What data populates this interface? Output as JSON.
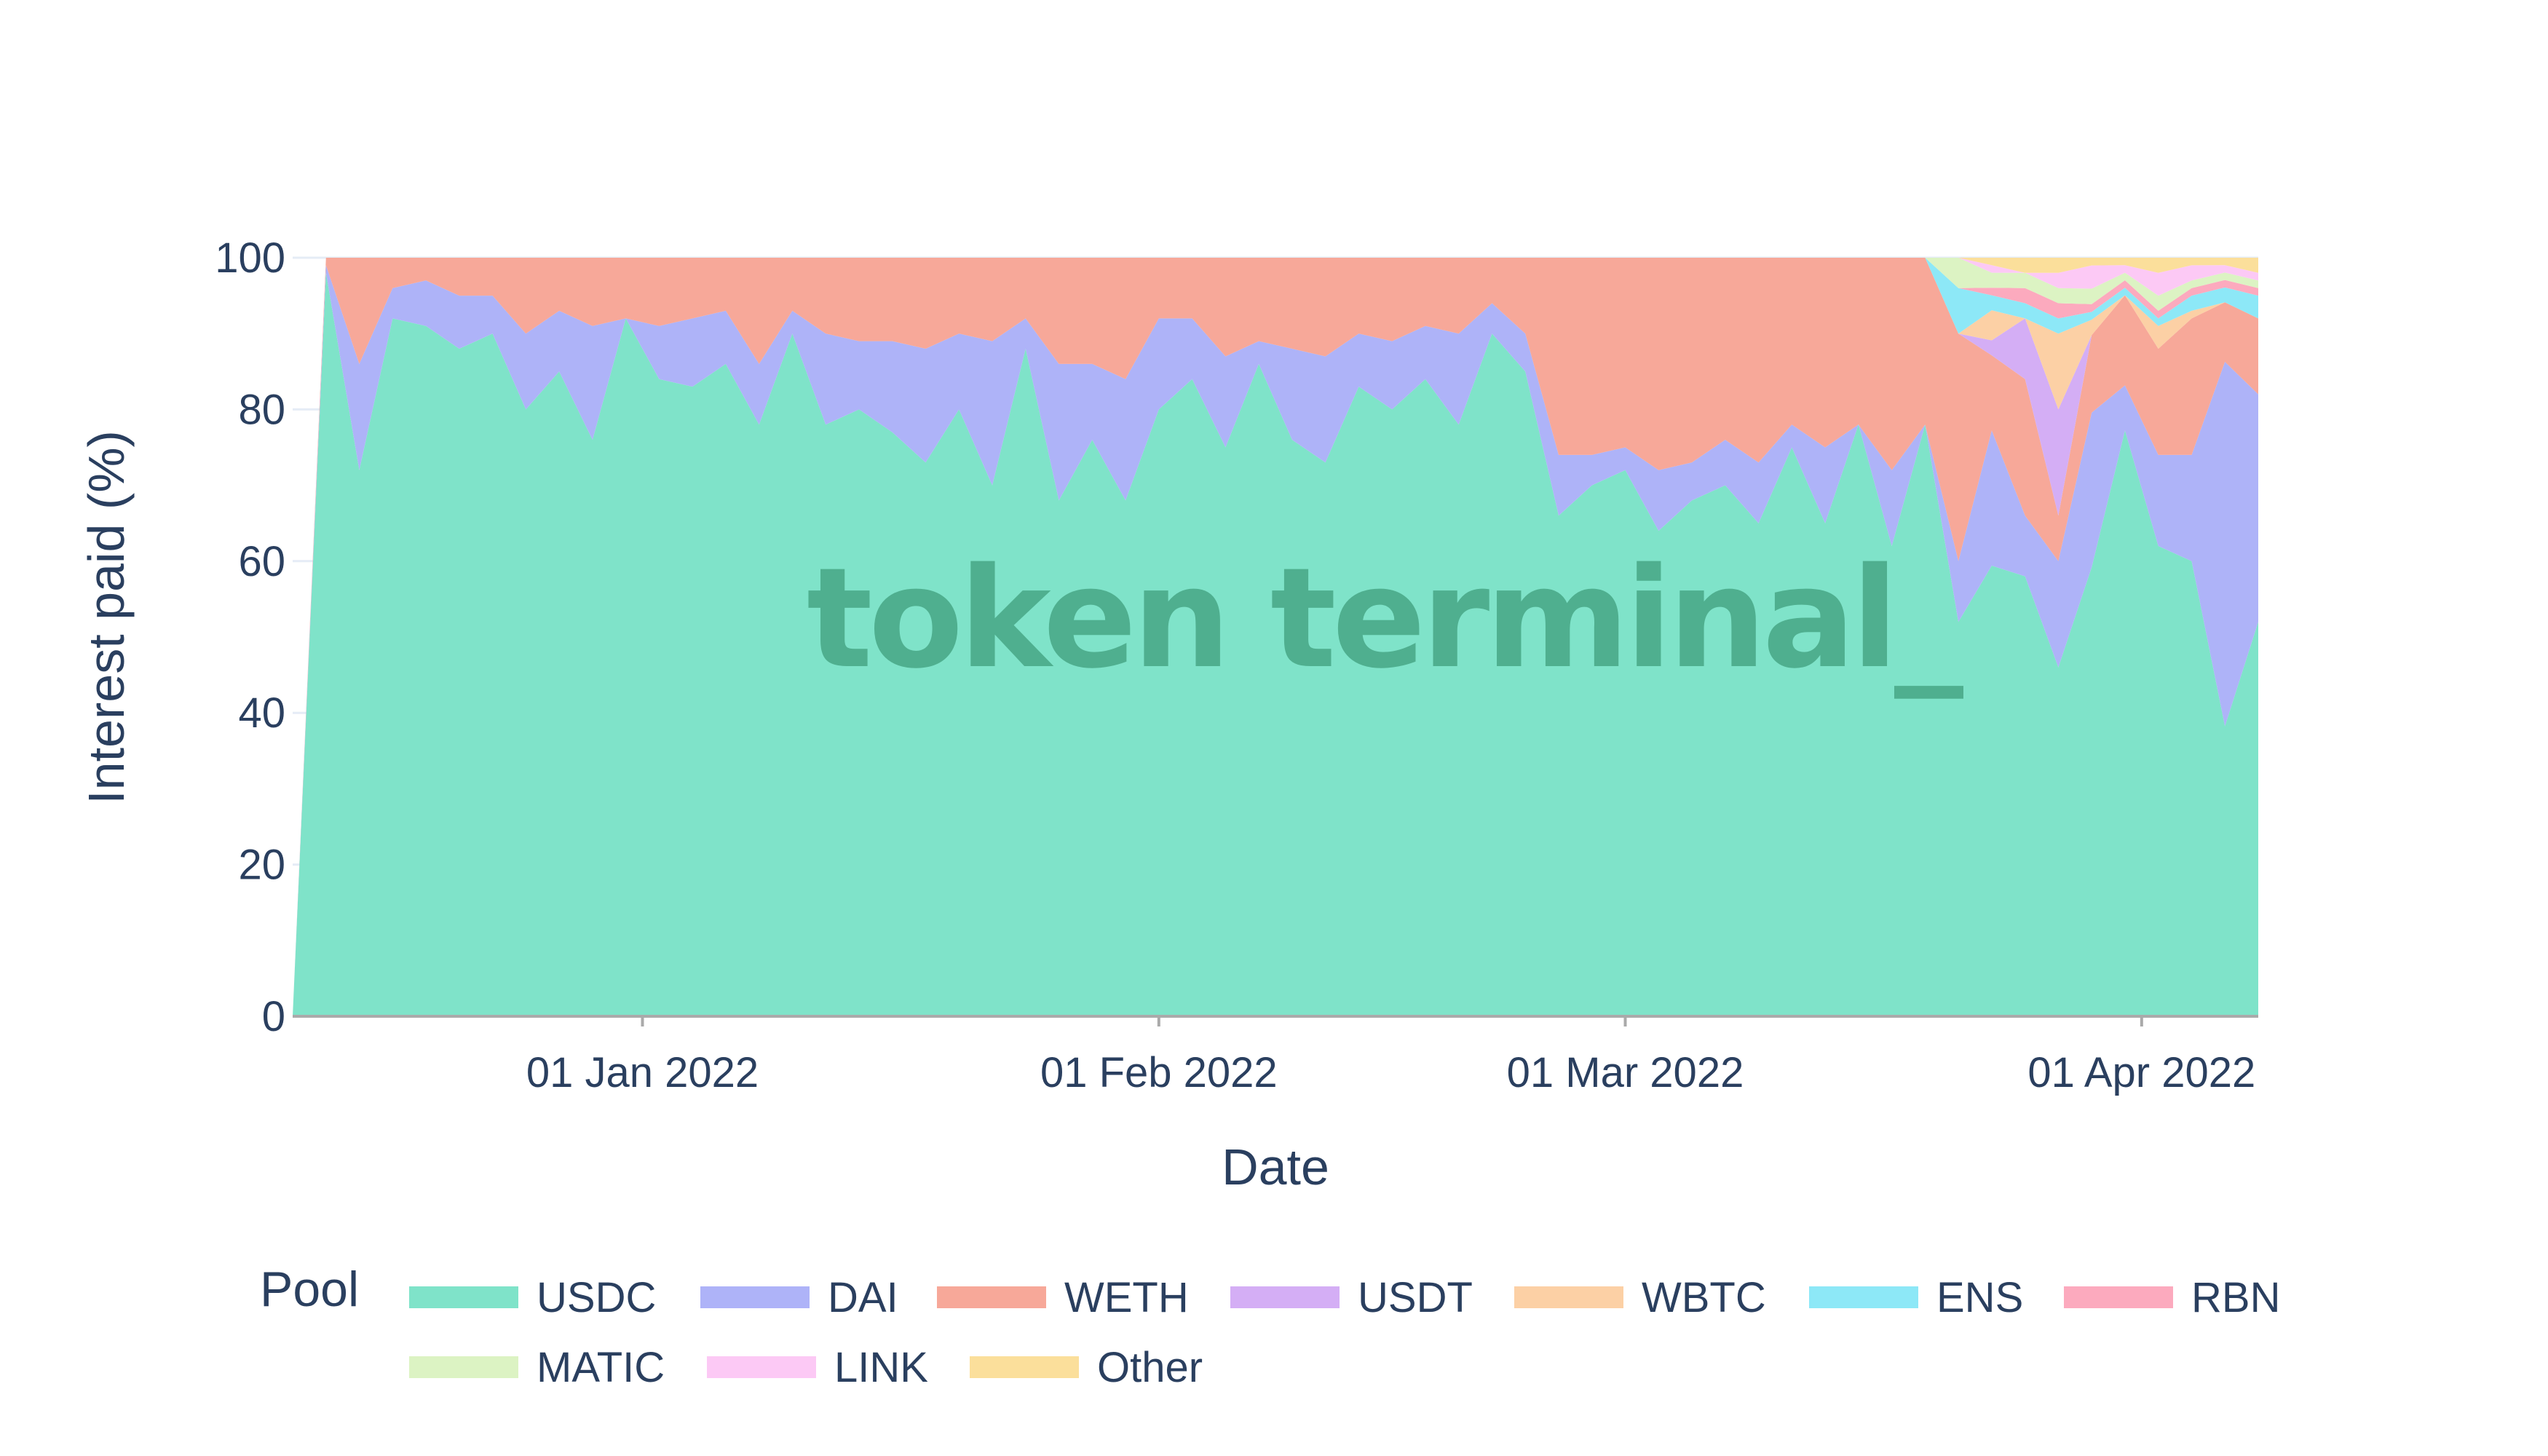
{
  "watermark": "token terminal_",
  "chart_data": {
    "type": "area",
    "stacking": "percent",
    "xlabel": "Date",
    "ylabel": "Interest paid (%)",
    "ylim": [
      0,
      100
    ],
    "yticks": [
      0,
      20,
      40,
      60,
      80,
      100
    ],
    "xticks": [
      {
        "date": "2022-01-01",
        "label": "01 Jan 2022"
      },
      {
        "date": "2022-02-01",
        "label": "01 Feb 2022"
      },
      {
        "date": "2022-03-01",
        "label": "01 Mar 2022"
      },
      {
        "date": "2022-04-01",
        "label": "01 Apr 2022"
      }
    ],
    "x_range": [
      "2021-12-11",
      "2022-04-08"
    ],
    "grid": true,
    "legend": {
      "title": "Pool",
      "placement": "bottom"
    },
    "x": [
      "2021-12-11",
      "2021-12-13",
      "2021-12-15",
      "2021-12-17",
      "2021-12-19",
      "2021-12-21",
      "2021-12-23",
      "2021-12-25",
      "2021-12-27",
      "2021-12-29",
      "2021-12-31",
      "2022-01-02",
      "2022-01-04",
      "2022-01-06",
      "2022-01-08",
      "2022-01-10",
      "2022-01-12",
      "2022-01-14",
      "2022-01-16",
      "2022-01-18",
      "2022-01-20",
      "2022-01-22",
      "2022-01-24",
      "2022-01-26",
      "2022-01-28",
      "2022-01-30",
      "2022-02-01",
      "2022-02-03",
      "2022-02-05",
      "2022-02-07",
      "2022-02-09",
      "2022-02-11",
      "2022-02-13",
      "2022-02-15",
      "2022-02-17",
      "2022-02-19",
      "2022-02-21",
      "2022-02-23",
      "2022-02-25",
      "2022-02-27",
      "2022-03-01",
      "2022-03-03",
      "2022-03-05",
      "2022-03-07",
      "2022-03-09",
      "2022-03-11",
      "2022-03-13",
      "2022-03-15",
      "2022-03-17",
      "2022-03-19",
      "2022-03-21",
      "2022-03-23",
      "2022-03-25",
      "2022-03-27",
      "2022-03-29",
      "2022-03-31",
      "2022-04-02",
      "2022-04-04",
      "2022-04-06",
      "2022-04-08"
    ],
    "series": [
      {
        "name": "USDC",
        "color": "#7fe3c9",
        "values": [
          0,
          98,
          72,
          92,
          91,
          88,
          90,
          80,
          85,
          76,
          92,
          84,
          83,
          86,
          78,
          90,
          78,
          80,
          77,
          73,
          80,
          70,
          88,
          68,
          76,
          68,
          80,
          84,
          75,
          86,
          76,
          73,
          83,
          80,
          84,
          78,
          90,
          85,
          66,
          70,
          72,
          64,
          68,
          70,
          65,
          75,
          65,
          78,
          62,
          78,
          52,
          60,
          58,
          46,
          58,
          78,
          62,
          60,
          39,
          52
        ]
      },
      {
        "name": "DAI",
        "color": "#aeb3f8",
        "values": [
          0,
          1,
          14,
          4,
          6,
          7,
          5,
          10,
          8,
          15,
          0,
          7,
          9,
          7,
          8,
          3,
          12,
          9,
          12,
          15,
          10,
          19,
          4,
          18,
          10,
          16,
          12,
          8,
          12,
          3,
          12,
          14,
          7,
          9,
          7,
          12,
          4,
          5,
          8,
          4,
          3,
          8,
          5,
          6,
          8,
          3,
          10,
          0,
          10,
          0,
          8,
          18,
          8,
          14,
          20,
          6,
          12,
          14,
          49,
          30
        ]
      },
      {
        "name": "WETH",
        "color": "#f7a899",
        "values": [
          0,
          1,
          14,
          4,
          3,
          5,
          5,
          10,
          7,
          9,
          8,
          9,
          8,
          7,
          14,
          7,
          10,
          11,
          11,
          12,
          10,
          11,
          8,
          14,
          14,
          16,
          8,
          8,
          13,
          11,
          12,
          13,
          10,
          11,
          9,
          10,
          6,
          10,
          26,
          26,
          25,
          28,
          27,
          24,
          27,
          22,
          25,
          22,
          28,
          22,
          30,
          10,
          18,
          6,
          10,
          12,
          14,
          18,
          8,
          10
        ]
      },
      {
        "name": "USDT",
        "color": "#d4aef5",
        "values": [
          0,
          0,
          0,
          0,
          0,
          0,
          0,
          0,
          0,
          0,
          0,
          0,
          0,
          0,
          0,
          0,
          0,
          0,
          0,
          0,
          0,
          0,
          0,
          0,
          0,
          0,
          0,
          0,
          0,
          0,
          0,
          0,
          0,
          0,
          0,
          0,
          0,
          0,
          0,
          0,
          0,
          0,
          0,
          0,
          0,
          0,
          0,
          0,
          0,
          0,
          0,
          2,
          8,
          14,
          0,
          0,
          0,
          0,
          0,
          0
        ]
      },
      {
        "name": "WBTC",
        "color": "#fcd0a5",
        "values": [
          0,
          0,
          0,
          0,
          0,
          0,
          0,
          0,
          0,
          0,
          0,
          0,
          0,
          0,
          0,
          0,
          0,
          0,
          0,
          0,
          0,
          0,
          0,
          0,
          0,
          0,
          0,
          0,
          0,
          0,
          0,
          0,
          0,
          0,
          0,
          0,
          0,
          0,
          0,
          0,
          0,
          0,
          0,
          0,
          0,
          0,
          0,
          0,
          0,
          0,
          0,
          4,
          0,
          10,
          2,
          0,
          3,
          1,
          0,
          0
        ]
      },
      {
        "name": "ENS",
        "color": "#8de8f7",
        "values": [
          0,
          0,
          0,
          0,
          0,
          0,
          0,
          0,
          0,
          0,
          0,
          0,
          0,
          0,
          0,
          0,
          0,
          0,
          0,
          0,
          0,
          0,
          0,
          0,
          0,
          0,
          0,
          0,
          0,
          0,
          0,
          0,
          0,
          0,
          0,
          0,
          0,
          0,
          0,
          0,
          0,
          0,
          0,
          0,
          0,
          0,
          0,
          0,
          0,
          0,
          6,
          2,
          2,
          2,
          1,
          1,
          1,
          2,
          2,
          3
        ]
      },
      {
        "name": "RBN",
        "color": "#fcaabe",
        "values": [
          0,
          0,
          0,
          0,
          0,
          0,
          0,
          0,
          0,
          0,
          0,
          0,
          0,
          0,
          0,
          0,
          0,
          0,
          0,
          0,
          0,
          0,
          0,
          0,
          0,
          0,
          0,
          0,
          0,
          0,
          0,
          0,
          0,
          0,
          0,
          0,
          0,
          0,
          0,
          0,
          0,
          0,
          0,
          0,
          0,
          0,
          0,
          0,
          0,
          0,
          0,
          1,
          2,
          2,
          1,
          1,
          1,
          1,
          1,
          1
        ]
      },
      {
        "name": "MATIC",
        "color": "#dcf3c3",
        "values": [
          0,
          0,
          0,
          0,
          0,
          0,
          0,
          0,
          0,
          0,
          0,
          0,
          0,
          0,
          0,
          0,
          0,
          0,
          0,
          0,
          0,
          0,
          0,
          0,
          0,
          0,
          0,
          0,
          0,
          0,
          0,
          0,
          0,
          0,
          0,
          0,
          0,
          0,
          0,
          0,
          0,
          0,
          0,
          0,
          0,
          0,
          0,
          0,
          0,
          0,
          4,
          2,
          2,
          2,
          2,
          1,
          2,
          1,
          1,
          1
        ]
      },
      {
        "name": "LINK",
        "color": "#fcc9f5",
        "values": [
          0,
          0,
          0,
          0,
          0,
          0,
          0,
          0,
          0,
          0,
          0,
          0,
          0,
          0,
          0,
          0,
          0,
          0,
          0,
          0,
          0,
          0,
          0,
          0,
          0,
          0,
          0,
          0,
          0,
          0,
          0,
          0,
          0,
          0,
          0,
          0,
          0,
          0,
          0,
          0,
          0,
          0,
          0,
          0,
          0,
          0,
          0,
          0,
          0,
          0,
          0,
          1,
          0,
          2,
          3,
          1,
          3,
          2,
          1,
          1
        ]
      },
      {
        "name": "Other",
        "color": "#fbdf9b",
        "values": [
          0,
          0,
          0,
          0,
          0,
          0,
          0,
          0,
          0,
          0,
          0,
          0,
          0,
          0,
          0,
          0,
          0,
          0,
          0,
          0,
          0,
          0,
          0,
          0,
          0,
          0,
          0,
          0,
          0,
          0,
          0,
          0,
          0,
          0,
          0,
          0,
          0,
          0,
          0,
          0,
          0,
          0,
          0,
          0,
          0,
          0,
          0,
          0,
          0,
          0,
          0,
          1,
          2,
          2,
          1,
          1,
          2,
          1,
          1,
          2
        ]
      }
    ]
  }
}
